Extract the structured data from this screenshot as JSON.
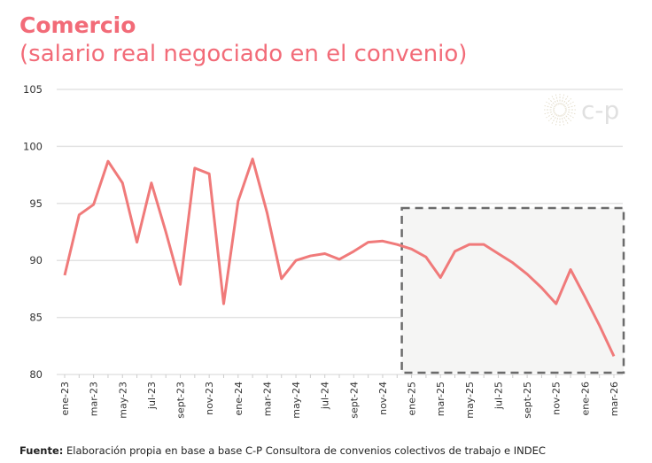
{
  "title": "Comercio",
  "subtitle": "(salario real negociado en el convenio)",
  "logo": "c-p",
  "source": {
    "label": "Fuente:",
    "text": "Elaboración propia en base a base C-P Consultora de convenios colectivos de trabajo e INDEC"
  },
  "chart_data": {
    "type": "line",
    "title": "Comercio",
    "subtitle": "(salario real negociado en el convenio)",
    "xlabel": "",
    "ylabel": "",
    "ylim": [
      80,
      105
    ],
    "yticks": [
      80,
      85,
      90,
      95,
      100,
      105
    ],
    "grid": true,
    "line_color": "#f07a7a",
    "x": [
      "ene-23",
      "feb-23",
      "mar-23",
      "abr-23",
      "may-23",
      "jun-23",
      "jul-23",
      "ago-23",
      "sept-23",
      "oct-23",
      "nov-23",
      "dic-23",
      "ene-24",
      "feb-24",
      "mar-24",
      "abr-24",
      "may-24",
      "jun-24",
      "jul-24",
      "ago-24",
      "sept-24",
      "oct-24",
      "nov-24",
      "dic-24",
      "ene-25",
      "feb-25",
      "mar-25",
      "abr-25",
      "may-25",
      "jun-25",
      "jul-25",
      "ago-25",
      "sept-25",
      "oct-25",
      "nov-25",
      "dic-25",
      "ene-26",
      "feb-26",
      "mar-26"
    ],
    "xtick_labels": [
      "ene-23",
      "mar-23",
      "may-23",
      "jul-23",
      "sept-23",
      "nov-23",
      "ene-24",
      "mar-24",
      "may-24",
      "jul-24",
      "sept-24",
      "nov-24",
      "ene-25",
      "mar-25",
      "may-25",
      "jul-25",
      "sept-25",
      "nov-25",
      "ene-26",
      "mar-26"
    ],
    "values": [
      88.7,
      94.0,
      94.9,
      98.7,
      96.8,
      91.6,
      96.8,
      92.5,
      87.9,
      98.1,
      97.6,
      86.2,
      95.2,
      98.9,
      94.2,
      88.4,
      90.0,
      90.4,
      90.6,
      90.1,
      90.8,
      91.6,
      91.7,
      91.4,
      91.0,
      90.3,
      88.5,
      90.8,
      91.4,
      91.4,
      90.6,
      89.8,
      88.8,
      87.6,
      86.2,
      89.2,
      86.8,
      84.3,
      81.6
    ],
    "highlight_region": {
      "x_start": "ene-25",
      "x_end": "mar-26",
      "y_top": 94.6,
      "style": "dashed box, light grey fill"
    }
  }
}
